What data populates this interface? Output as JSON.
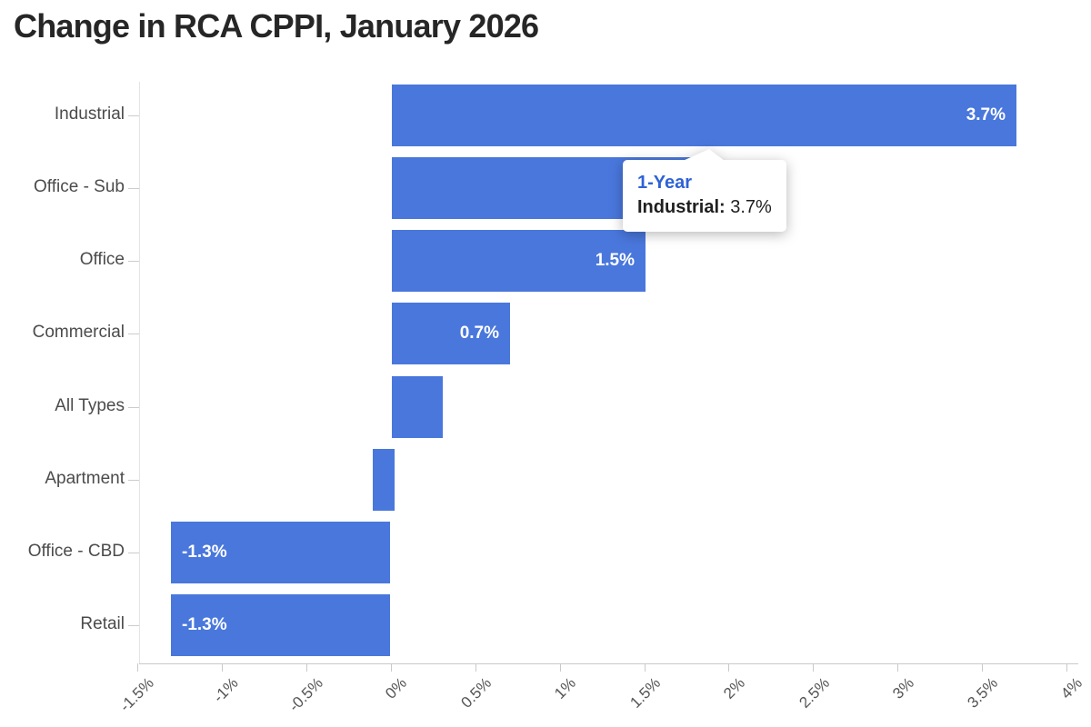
{
  "title": "Change in RCA CPPI, January 2026",
  "chart_data": {
    "type": "bar",
    "orientation": "horizontal",
    "title": "Change in RCA CPPI, January 2026",
    "xlabel": "",
    "ylabel": "",
    "categories": [
      "Industrial",
      "Office - Sub",
      "Office",
      "Commercial",
      "All Types",
      "Apartment",
      "Office - CBD",
      "Retail"
    ],
    "series": [
      {
        "name": "1-Year",
        "values": [
          3.7,
          1.9,
          1.5,
          0.7,
          0.3,
          -0.1,
          -1.3,
          -1.3
        ]
      }
    ],
    "bar_labels": [
      "3.7%",
      "",
      "1.5%",
      "0.7%",
      "",
      "",
      "-1.3%",
      "-1.3%"
    ],
    "xlim": [
      -1.5,
      4
    ],
    "x_ticks": [
      -1.5,
      -1,
      -0.5,
      0,
      0.5,
      1,
      1.5,
      2,
      2.5,
      3,
      3.5,
      4
    ],
    "x_tick_labels": [
      "-1.5%",
      "-1%",
      "-0.5%",
      "0%",
      "0.5%",
      "1%",
      "1.5%",
      "2%",
      "2.5%",
      "3%",
      "3.5%",
      "4%"
    ],
    "grid": "off",
    "legend": "none",
    "bar_color": "#4977dc",
    "value_label_color": "#ffffff"
  },
  "tooltip": {
    "series": "1-Year",
    "category": "Industrial:",
    "value": "3.7%",
    "accent_color": "#2e62d6"
  }
}
